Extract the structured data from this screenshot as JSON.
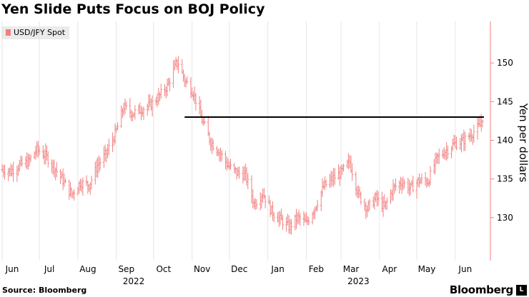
{
  "header": {
    "title": "Yen Slide Puts Focus on BOJ Policy"
  },
  "footer": {
    "source": "Source: Bloomberg",
    "brand": "Bloomberg",
    "brand_mark": "L"
  },
  "colors": {
    "series": "#f28080",
    "axis": "#f28080",
    "grid": "#e6e6e6",
    "reference_line": "#000000"
  },
  "chart_data": {
    "type": "line",
    "style": "ohlc-bars",
    "title": "Yen Slide Puts Focus on BOJ Policy",
    "ylabel": "Yen per dollars",
    "xlabel": "",
    "ylim": [
      125,
      155
    ],
    "yticks": [
      130,
      135,
      140,
      145,
      150
    ],
    "y_axis_side": "right",
    "grid": "vertical",
    "legend": "top-left",
    "x_range": [
      "2022-06-01",
      "2023-06-23"
    ],
    "x_month_ticks": [
      {
        "label": "Jun",
        "date": "2022-06-01"
      },
      {
        "label": "Jul",
        "date": "2022-07-01"
      },
      {
        "label": "Aug",
        "date": "2022-08-01"
      },
      {
        "label": "Sep",
        "date": "2022-09-01"
      },
      {
        "label": "Oct",
        "date": "2022-10-01"
      },
      {
        "label": "Nov",
        "date": "2022-11-01"
      },
      {
        "label": "Dec",
        "date": "2022-12-01"
      },
      {
        "label": "Jan",
        "date": "2023-01-01"
      },
      {
        "label": "Feb",
        "date": "2023-02-01"
      },
      {
        "label": "Mar",
        "date": "2023-03-01"
      },
      {
        "label": "Apr",
        "date": "2023-04-01"
      },
      {
        "label": "May",
        "date": "2023-05-01"
      },
      {
        "label": "Jun",
        "date": "2023-06-01"
      }
    ],
    "x_year_labels": [
      {
        "label": "2022",
        "date": "2022-09-15"
      },
      {
        "label": "2023",
        "date": "2023-03-15"
      }
    ],
    "series": [
      {
        "name": "USD/JPY Spot",
        "x": [
          "2022-06-01",
          "2022-06-08",
          "2022-06-15",
          "2022-06-22",
          "2022-06-29",
          "2022-07-06",
          "2022-07-13",
          "2022-07-20",
          "2022-07-27",
          "2022-08-03",
          "2022-08-10",
          "2022-08-17",
          "2022-08-24",
          "2022-08-31",
          "2022-09-07",
          "2022-09-14",
          "2022-09-21",
          "2022-09-28",
          "2022-10-05",
          "2022-10-12",
          "2022-10-19",
          "2022-10-21",
          "2022-10-26",
          "2022-11-02",
          "2022-11-09",
          "2022-11-16",
          "2022-11-23",
          "2022-11-30",
          "2022-12-07",
          "2022-12-14",
          "2022-12-21",
          "2022-12-28",
          "2023-01-04",
          "2023-01-11",
          "2023-01-18",
          "2023-01-25",
          "2023-02-01",
          "2023-02-08",
          "2023-02-15",
          "2023-02-22",
          "2023-03-01",
          "2023-03-08",
          "2023-03-15",
          "2023-03-22",
          "2023-03-29",
          "2023-04-05",
          "2023-04-12",
          "2023-04-19",
          "2023-04-26",
          "2023-05-03",
          "2023-05-10",
          "2023-05-17",
          "2023-05-24",
          "2023-05-31",
          "2023-06-07",
          "2023-06-14",
          "2023-06-21",
          "2023-06-23"
        ],
        "values": [
          136.2,
          136.0,
          136.8,
          137.2,
          138.8,
          138.0,
          136.5,
          134.8,
          133.0,
          134.5,
          134.2,
          136.8,
          138.3,
          140.8,
          144.3,
          143.5,
          144.0,
          144.5,
          145.6,
          147.0,
          149.8,
          150.0,
          147.8,
          146.2,
          142.6,
          139.8,
          138.5,
          136.7,
          135.8,
          135.5,
          131.8,
          133.2,
          130.8,
          129.8,
          128.8,
          130.0,
          129.3,
          131.3,
          134.0,
          135.0,
          135.8,
          137.2,
          133.0,
          131.2,
          132.5,
          131.3,
          133.8,
          134.6,
          133.8,
          134.8,
          134.7,
          137.6,
          138.6,
          139.5,
          139.9,
          140.8,
          141.9,
          143.0
        ]
      }
    ],
    "reference_level": 143
  }
}
